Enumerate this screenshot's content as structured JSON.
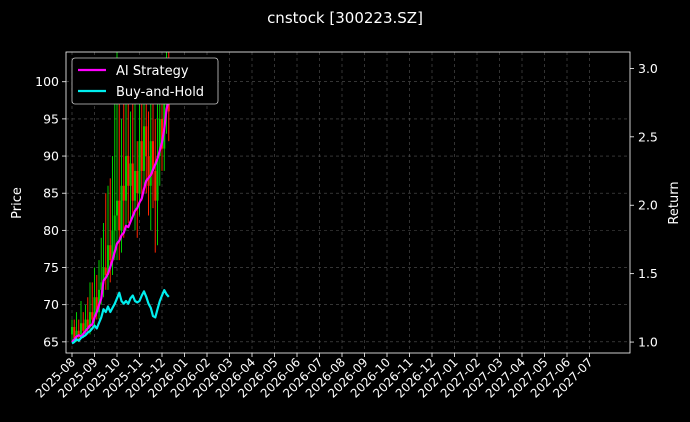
{
  "chart_data": {
    "type": "line",
    "title": "cnstock [300223.SZ]",
    "ylabel": "Price",
    "y2label": "Return",
    "ylim": [
      63.5,
      104
    ],
    "y2lim": [
      0.92,
      3.12
    ],
    "yticks": [
      65,
      70,
      75,
      80,
      85,
      90,
      95,
      100
    ],
    "y2ticks": [
      "1.0",
      "1.5",
      "2.0",
      "2.5",
      "3.0"
    ],
    "x_months": [
      "2025-08",
      "2025-09",
      "2025-10",
      "2025-11",
      "2025-12",
      "2026-01",
      "2026-02",
      "2026-03",
      "2026-04",
      "2026-05",
      "2026-06",
      "2026-07",
      "2026-08",
      "2026-09",
      "2026-10",
      "2026-11",
      "2026-12",
      "2027-01",
      "2027-02",
      "2027-03",
      "2027-04",
      "2027-05",
      "2027-06",
      "2027-07"
    ],
    "grid": true,
    "legend_position": "top-left",
    "colors": {
      "background": "#000000",
      "up": "#00cc00",
      "down": "#ff2200",
      "ai": "#ff00ff",
      "buyhold": "#00eeee",
      "grid": "#555555"
    },
    "candles": [
      {
        "x": 0.0,
        "o": 66,
        "c": 67,
        "h": 68,
        "l": 65
      },
      {
        "x": 0.1,
        "o": 67,
        "c": 65.5,
        "h": 68,
        "l": 65
      },
      {
        "x": 0.2,
        "o": 65.5,
        "c": 66.5,
        "h": 69,
        "l": 65
      },
      {
        "x": 0.3,
        "o": 66.5,
        "c": 66,
        "h": 68,
        "l": 65
      },
      {
        "x": 0.4,
        "o": 66,
        "c": 67.5,
        "h": 70.5,
        "l": 65.5
      },
      {
        "x": 0.5,
        "o": 67.5,
        "c": 66.5,
        "h": 69,
        "l": 65.5
      },
      {
        "x": 0.6,
        "o": 66.5,
        "c": 68,
        "h": 70,
        "l": 66
      },
      {
        "x": 0.7,
        "o": 68,
        "c": 67,
        "h": 71,
        "l": 66
      },
      {
        "x": 0.8,
        "o": 67,
        "c": 69,
        "h": 73,
        "l": 66
      },
      {
        "x": 0.9,
        "o": 69,
        "c": 68,
        "h": 73,
        "l": 67
      },
      {
        "x": 1.0,
        "o": 68,
        "c": 71,
        "h": 75,
        "l": 67
      },
      {
        "x": 1.1,
        "o": 71,
        "c": 69,
        "h": 74,
        "l": 68
      },
      {
        "x": 1.2,
        "o": 69,
        "c": 72,
        "h": 76,
        "l": 68
      },
      {
        "x": 1.3,
        "o": 72,
        "c": 73,
        "h": 79,
        "l": 70
      },
      {
        "x": 1.4,
        "o": 73,
        "c": 75,
        "h": 81,
        "l": 71
      },
      {
        "x": 1.5,
        "o": 75,
        "c": 74,
        "h": 85,
        "l": 72
      },
      {
        "x": 1.6,
        "o": 74,
        "c": 78,
        "h": 86,
        "l": 72
      },
      {
        "x": 1.7,
        "o": 78,
        "c": 76,
        "h": 87,
        "l": 73
      },
      {
        "x": 1.8,
        "o": 76,
        "c": 80,
        "h": 90,
        "l": 74
      },
      {
        "x": 1.9,
        "o": 80,
        "c": 82,
        "h": 98,
        "l": 76
      },
      {
        "x": 2.0,
        "o": 82,
        "c": 84,
        "h": 104,
        "l": 76
      },
      {
        "x": 2.1,
        "o": 84,
        "c": 80,
        "h": 97,
        "l": 76
      },
      {
        "x": 2.2,
        "o": 80,
        "c": 86,
        "h": 95,
        "l": 77
      },
      {
        "x": 2.3,
        "o": 86,
        "c": 84,
        "h": 98,
        "l": 79
      },
      {
        "x": 2.4,
        "o": 84,
        "c": 90,
        "h": 101,
        "l": 80
      },
      {
        "x": 2.5,
        "o": 90,
        "c": 86,
        "h": 99,
        "l": 81
      },
      {
        "x": 2.6,
        "o": 86,
        "c": 89,
        "h": 96,
        "l": 81
      },
      {
        "x": 2.7,
        "o": 89,
        "c": 84,
        "h": 97,
        "l": 82
      },
      {
        "x": 2.8,
        "o": 84,
        "c": 88,
        "h": 98,
        "l": 80
      },
      {
        "x": 2.9,
        "o": 88,
        "c": 85,
        "h": 92,
        "l": 79
      },
      {
        "x": 3.0,
        "o": 85,
        "c": 92,
        "h": 100,
        "l": 82
      },
      {
        "x": 3.1,
        "o": 92,
        "c": 88,
        "h": 101,
        "l": 84
      },
      {
        "x": 3.2,
        "o": 88,
        "c": 94,
        "h": 102,
        "l": 85
      },
      {
        "x": 3.3,
        "o": 94,
        "c": 90,
        "h": 100,
        "l": 85
      },
      {
        "x": 3.4,
        "o": 90,
        "c": 86,
        "h": 96,
        "l": 82
      },
      {
        "x": 3.5,
        "o": 86,
        "c": 92,
        "h": 98,
        "l": 80
      },
      {
        "x": 3.6,
        "o": 92,
        "c": 88,
        "h": 97,
        "l": 83
      },
      {
        "x": 3.7,
        "o": 88,
        "c": 84,
        "h": 95,
        "l": 77
      },
      {
        "x": 3.8,
        "o": 84,
        "c": 90,
        "h": 97,
        "l": 78
      },
      {
        "x": 3.9,
        "o": 90,
        "c": 95,
        "h": 102,
        "l": 86
      },
      {
        "x": 4.0,
        "o": 95,
        "c": 91,
        "h": 103,
        "l": 88
      },
      {
        "x": 4.1,
        "o": 91,
        "c": 97,
        "h": 102,
        "l": 88
      },
      {
        "x": 4.2,
        "o": 97,
        "c": 99,
        "h": 104,
        "l": 93
      },
      {
        "x": 4.3,
        "o": 99,
        "c": 96,
        "h": 104,
        "l": 92
      }
    ],
    "series": [
      {
        "name": "AI Strategy",
        "points": [
          [
            0.0,
            1.0
          ],
          [
            0.1,
            1.02
          ],
          [
            0.2,
            1.04
          ],
          [
            0.3,
            1.05
          ],
          [
            0.4,
            1.04
          ],
          [
            0.5,
            1.06
          ],
          [
            0.6,
            1.08
          ],
          [
            0.7,
            1.1
          ],
          [
            0.8,
            1.12
          ],
          [
            0.9,
            1.13
          ],
          [
            1.0,
            1.18
          ],
          [
            1.1,
            1.22
          ],
          [
            1.2,
            1.27
          ],
          [
            1.3,
            1.32
          ],
          [
            1.4,
            1.45
          ],
          [
            1.5,
            1.47
          ],
          [
            1.6,
            1.5
          ],
          [
            1.7,
            1.55
          ],
          [
            1.8,
            1.6
          ],
          [
            1.9,
            1.66
          ],
          [
            2.0,
            1.72
          ],
          [
            2.1,
            1.74
          ],
          [
            2.2,
            1.78
          ],
          [
            2.3,
            1.8
          ],
          [
            2.4,
            1.85
          ],
          [
            2.5,
            1.84
          ],
          [
            2.6,
            1.88
          ],
          [
            2.7,
            1.92
          ],
          [
            2.8,
            1.96
          ],
          [
            2.9,
            1.98
          ],
          [
            3.0,
            2.02
          ],
          [
            3.1,
            2.05
          ],
          [
            3.2,
            2.12
          ],
          [
            3.3,
            2.18
          ],
          [
            3.4,
            2.2
          ],
          [
            3.5,
            2.22
          ],
          [
            3.6,
            2.26
          ],
          [
            3.7,
            2.3
          ],
          [
            3.8,
            2.34
          ],
          [
            3.9,
            2.4
          ],
          [
            4.0,
            2.46
          ],
          [
            4.1,
            2.56
          ],
          [
            4.2,
            2.7
          ],
          [
            4.3,
            2.77
          ]
        ]
      },
      {
        "name": "Buy-and-Hold",
        "points": [
          [
            0.0,
            0.99
          ],
          [
            0.1,
            1.0
          ],
          [
            0.2,
            1.02
          ],
          [
            0.3,
            1.01
          ],
          [
            0.4,
            1.03
          ],
          [
            0.5,
            1.04
          ],
          [
            0.6,
            1.05
          ],
          [
            0.7,
            1.07
          ],
          [
            0.8,
            1.08
          ],
          [
            0.9,
            1.1
          ],
          [
            1.0,
            1.12
          ],
          [
            1.1,
            1.1
          ],
          [
            1.2,
            1.14
          ],
          [
            1.3,
            1.18
          ],
          [
            1.4,
            1.24
          ],
          [
            1.5,
            1.22
          ],
          [
            1.6,
            1.26
          ],
          [
            1.7,
            1.22
          ],
          [
            1.8,
            1.25
          ],
          [
            1.9,
            1.28
          ],
          [
            2.0,
            1.32
          ],
          [
            2.1,
            1.36
          ],
          [
            2.2,
            1.3
          ],
          [
            2.3,
            1.28
          ],
          [
            2.4,
            1.3
          ],
          [
            2.5,
            1.28
          ],
          [
            2.6,
            1.32
          ],
          [
            2.7,
            1.34
          ],
          [
            2.8,
            1.3
          ],
          [
            2.9,
            1.29
          ],
          [
            3.0,
            1.3
          ],
          [
            3.1,
            1.34
          ],
          [
            3.2,
            1.37
          ],
          [
            3.3,
            1.33
          ],
          [
            3.4,
            1.28
          ],
          [
            3.5,
            1.25
          ],
          [
            3.6,
            1.19
          ],
          [
            3.7,
            1.18
          ],
          [
            3.8,
            1.24
          ],
          [
            3.9,
            1.3
          ],
          [
            4.0,
            1.34
          ],
          [
            4.1,
            1.38
          ],
          [
            4.2,
            1.35
          ],
          [
            4.3,
            1.33
          ]
        ]
      }
    ]
  }
}
